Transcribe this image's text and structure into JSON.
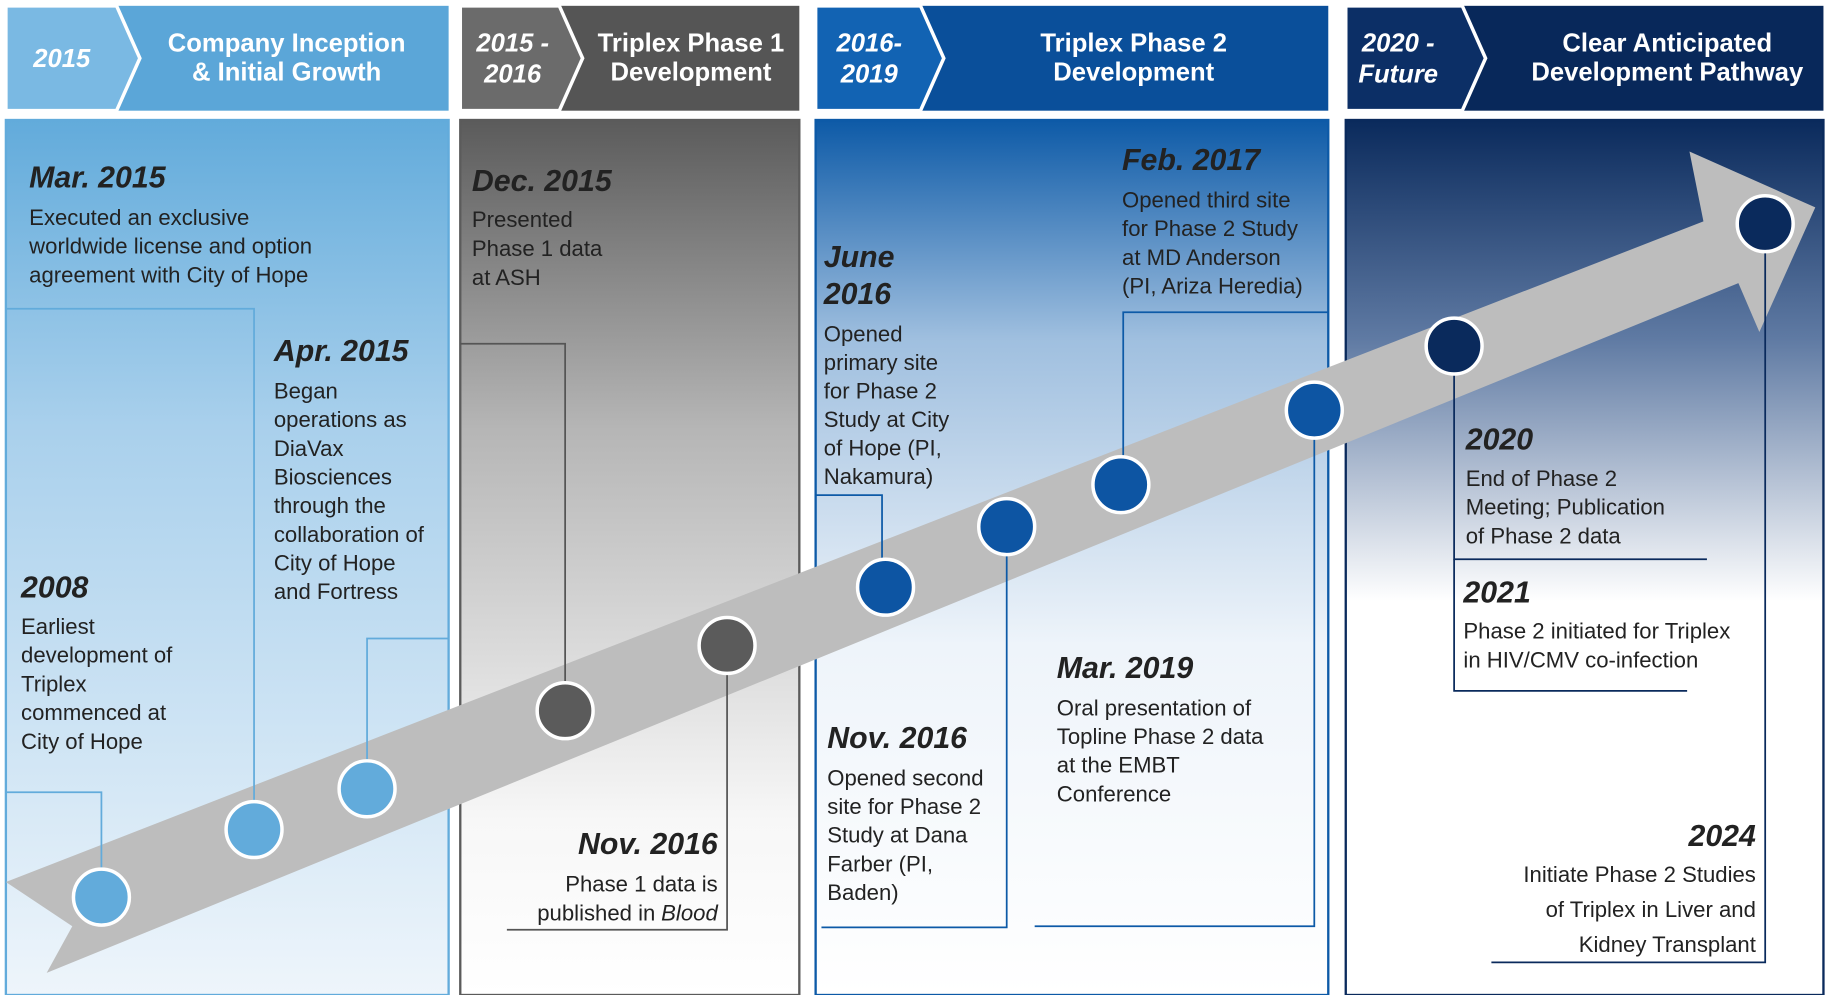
{
  "phases": [
    {
      "period": "2015",
      "title": [
        "Company Inception",
        "& Initial Growth"
      ]
    },
    {
      "period": [
        "2015 -",
        "2016"
      ],
      "title": [
        "Triplex Phase 1",
        "Development"
      ]
    },
    {
      "period": [
        "2016-",
        "2019"
      ],
      "title": [
        "Triplex Phase 2",
        "Development"
      ]
    },
    {
      "period": [
        "2020 -",
        "Future"
      ],
      "title": [
        "Clear Anticipated",
        "Development Pathway"
      ]
    }
  ],
  "events": [
    {
      "date": "Mar. 2015",
      "lines": [
        "Executed an exclusive",
        "worldwide license and option",
        "agreement with City of Hope"
      ]
    },
    {
      "date": "Apr. 2015",
      "lines": [
        "Began",
        "operations as",
        "DiaVax",
        "Biosciences",
        "through the",
        "collaboration of",
        "City of Hope",
        "and Fortress"
      ]
    },
    {
      "date": "2008",
      "lines": [
        "Earliest",
        "development of",
        "Triplex",
        "commenced at",
        "City of Hope"
      ]
    },
    {
      "date": "Dec. 2015",
      "lines": [
        "Presented",
        "Phase 1 data",
        "at ASH"
      ]
    },
    {
      "date": "Nov. 2016",
      "lines": [
        "Phase 1 data is",
        "published in"
      ],
      "italic_tail": "Blood"
    },
    {
      "date": [
        "June",
        "2016"
      ],
      "lines": [
        "Opened",
        "primary site",
        "for Phase 2",
        "Study at City",
        "of Hope (PI,",
        "Nakamura)"
      ]
    },
    {
      "date": "Feb. 2017",
      "lines": [
        "Opened third site",
        "for Phase 2 Study",
        "at MD Anderson",
        "(PI, Ariza Heredia)"
      ]
    },
    {
      "date": "Nov. 2016",
      "lines": [
        "Opened second",
        "site for Phase 2",
        "Study at Dana",
        "Farber (PI,",
        "Baden)"
      ]
    },
    {
      "date": "Mar. 2019",
      "lines": [
        "Oral presentation of",
        "Topline Phase 2 data",
        "at the EMBT",
        "Conference"
      ]
    },
    {
      "date": "2020",
      "lines": [
        "End of Phase 2",
        "Meeting; Publication",
        "of Phase 2 data"
      ]
    },
    {
      "date": "2021",
      "lines": [
        "Phase 2 initiated for Triplex",
        "in HIV/CMV co-infection"
      ]
    },
    {
      "date": "2024",
      "lines": [
        "Initiate Phase 2 Studies",
        "of Triplex in Liver and",
        "Kidney Transplant"
      ]
    }
  ]
}
